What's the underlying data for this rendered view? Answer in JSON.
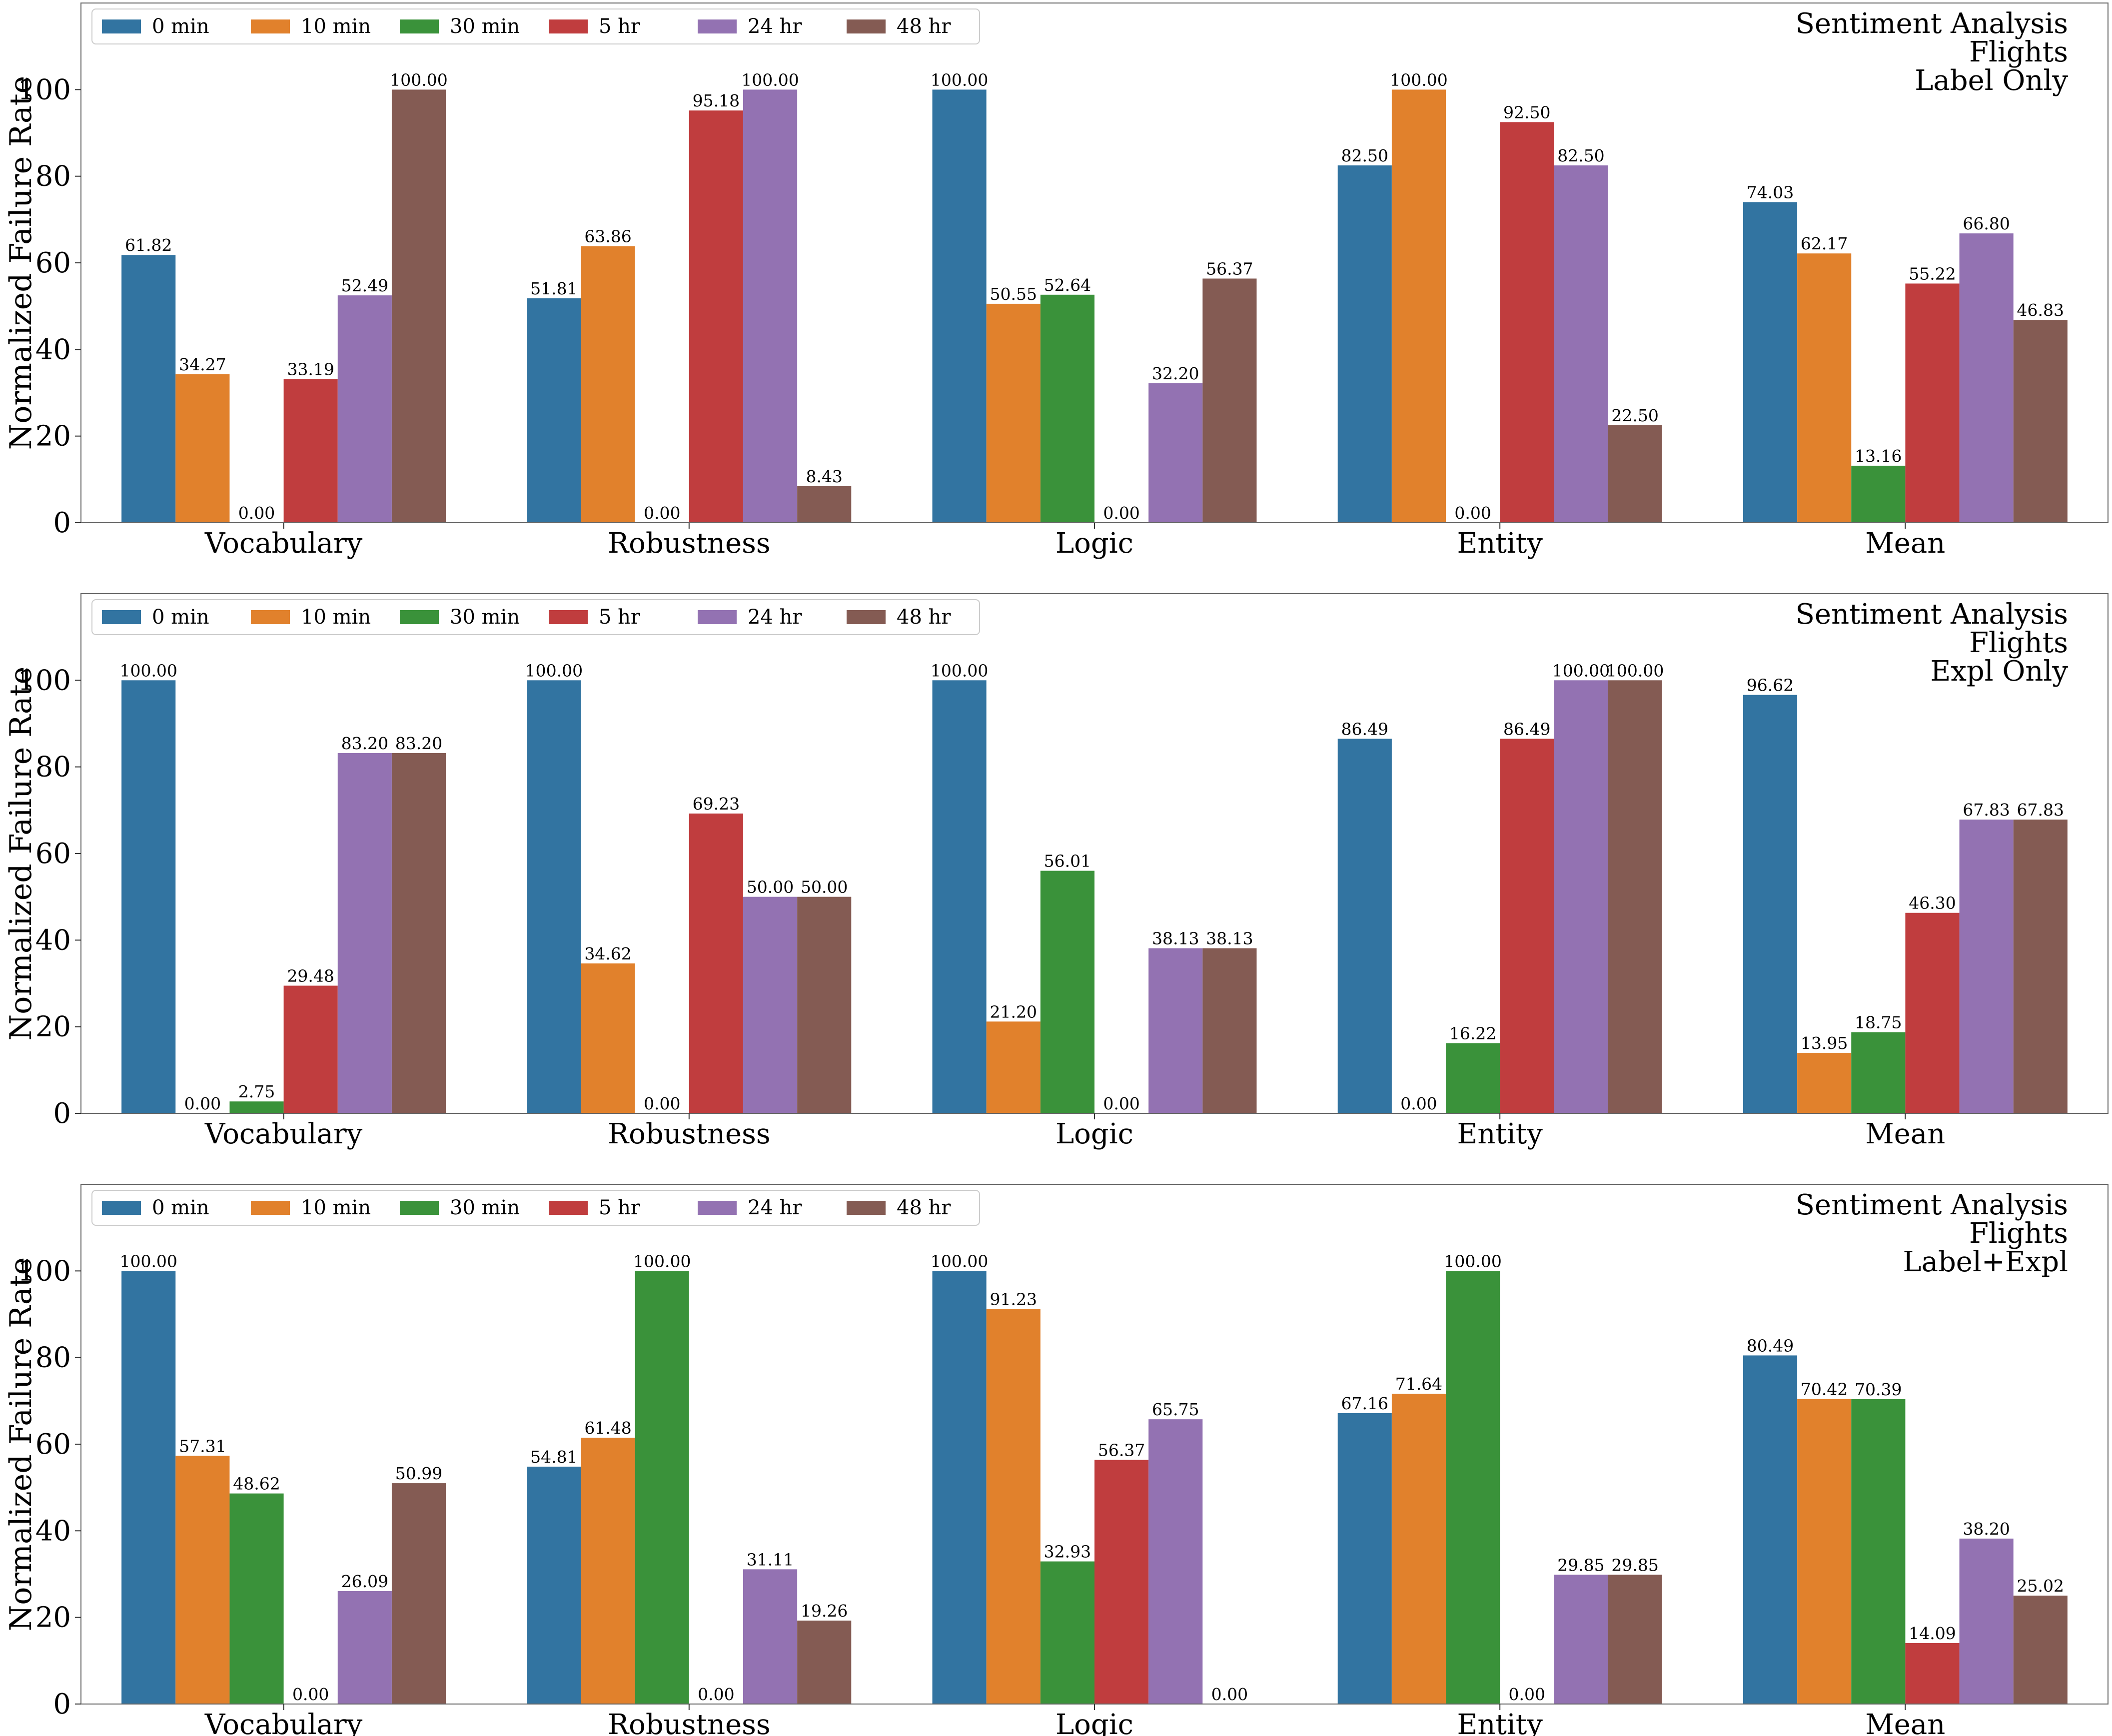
{
  "chart_data": [
    {
      "type": "bar",
      "annotation": [
        "Sentiment Analysis",
        "Flights",
        "Label Only"
      ],
      "ylabel": "Normalized Failure Rate",
      "ylim": [
        0,
        120
      ],
      "yticks": [
        "0",
        "20",
        "40",
        "60",
        "80",
        "100"
      ],
      "legend_position": "top-left",
      "categories": [
        "Vocabulary",
        "Robustness",
        "Logic",
        "Entity",
        "Mean"
      ],
      "series": [
        {
          "name": "0 min",
          "color": "#3274a1",
          "values": [
            61.82,
            51.81,
            100.0,
            82.5,
            74.03
          ],
          "labels": [
            "61.82",
            "51.81",
            "100.00",
            "82.50",
            "74.03"
          ]
        },
        {
          "name": "10 min",
          "color": "#e1812c",
          "values": [
            34.27,
            63.86,
            50.55,
            100.0,
            62.17
          ],
          "labels": [
            "34.27",
            "63.86",
            "50.55",
            "100.00",
            "62.17"
          ]
        },
        {
          "name": "30 min",
          "color": "#3a923a",
          "values": [
            0.0,
            0.0,
            52.64,
            0.0,
            13.16
          ],
          "labels": [
            "0.00",
            "0.00",
            "52.64",
            "0.00",
            "13.16"
          ]
        },
        {
          "name": "5 hr",
          "color": "#c03d3e",
          "values": [
            33.19,
            95.18,
            0.0,
            92.5,
            55.22
          ],
          "labels": [
            "33.19",
            "95.18",
            "0.00",
            "92.50",
            "55.22"
          ]
        },
        {
          "name": "24 hr",
          "color": "#9372b2",
          "values": [
            52.49,
            100.0,
            32.2,
            82.5,
            66.8
          ],
          "labels": [
            "52.49",
            "100.00",
            "32.20",
            "82.50",
            "66.80"
          ]
        },
        {
          "name": "48 hr",
          "color": "#845b53",
          "values": [
            100.0,
            8.43,
            56.37,
            22.5,
            46.83
          ],
          "labels": [
            "100.00",
            "8.43",
            "56.37",
            "22.50",
            "46.83"
          ]
        }
      ]
    },
    {
      "type": "bar",
      "annotation": [
        "Sentiment Analysis",
        "Flights",
        "Expl Only"
      ],
      "ylabel": "Normalized Failure Rate",
      "ylim": [
        0,
        120
      ],
      "yticks": [
        "0",
        "20",
        "40",
        "60",
        "80",
        "100"
      ],
      "legend_position": "top-left",
      "categories": [
        "Vocabulary",
        "Robustness",
        "Logic",
        "Entity",
        "Mean"
      ],
      "series": [
        {
          "name": "0 min",
          "color": "#3274a1",
          "values": [
            100.0,
            100.0,
            100.0,
            86.49,
            96.62
          ],
          "labels": [
            "100.00",
            "100.00",
            "100.00",
            "86.49",
            "96.62"
          ]
        },
        {
          "name": "10 min",
          "color": "#e1812c",
          "values": [
            0.0,
            34.62,
            21.2,
            0.0,
            13.95
          ],
          "labels": [
            "0.00",
            "34.62",
            "21.20",
            "0.00",
            "13.95"
          ]
        },
        {
          "name": "30 min",
          "color": "#3a923a",
          "values": [
            2.75,
            0.0,
            56.01,
            16.22,
            18.75
          ],
          "labels": [
            "2.75",
            "0.00",
            "56.01",
            "16.22",
            "18.75"
          ]
        },
        {
          "name": "5 hr",
          "color": "#c03d3e",
          "values": [
            29.48,
            69.23,
            0.0,
            86.49,
            46.3
          ],
          "labels": [
            "29.48",
            "69.23",
            "0.00",
            "86.49",
            "46.30"
          ]
        },
        {
          "name": "24 hr",
          "color": "#9372b2",
          "values": [
            83.2,
            50.0,
            38.13,
            100.0,
            67.83
          ],
          "labels": [
            "83.20",
            "50.00",
            "38.13",
            "100.00",
            "67.83"
          ]
        },
        {
          "name": "48 hr",
          "color": "#845b53",
          "values": [
            83.2,
            50.0,
            38.13,
            100.0,
            67.83
          ],
          "labels": [
            "83.20",
            "50.00",
            "38.13",
            "100.00",
            "67.83"
          ]
        }
      ]
    },
    {
      "type": "bar",
      "annotation": [
        "Sentiment Analysis",
        "Flights",
        "Label+Expl"
      ],
      "ylabel": "Normalized Failure Rate",
      "ylim": [
        0,
        120
      ],
      "yticks": [
        "0",
        "20",
        "40",
        "60",
        "80",
        "100"
      ],
      "legend_position": "top-left",
      "categories": [
        "Vocabulary",
        "Robustness",
        "Logic",
        "Entity",
        "Mean"
      ],
      "series": [
        {
          "name": "0 min",
          "color": "#3274a1",
          "values": [
            100.0,
            54.81,
            100.0,
            67.16,
            80.49
          ],
          "labels": [
            "100.00",
            "54.81",
            "100.00",
            "67.16",
            "80.49"
          ]
        },
        {
          "name": "10 min",
          "color": "#e1812c",
          "values": [
            57.31,
            61.48,
            91.23,
            71.64,
            70.42
          ],
          "labels": [
            "57.31",
            "61.48",
            "91.23",
            "71.64",
            "70.42"
          ]
        },
        {
          "name": "30 min",
          "color": "#3a923a",
          "values": [
            48.62,
            100.0,
            32.93,
            100.0,
            70.39
          ],
          "labels": [
            "48.62",
            "100.00",
            "32.93",
            "100.00",
            "70.39"
          ]
        },
        {
          "name": "5 hr",
          "color": "#c03d3e",
          "values": [
            0.0,
            0.0,
            56.37,
            0.0,
            14.09
          ],
          "labels": [
            "0.00",
            "0.00",
            "56.37",
            "0.00",
            "14.09"
          ]
        },
        {
          "name": "24 hr",
          "color": "#9372b2",
          "values": [
            26.09,
            31.11,
            65.75,
            29.85,
            38.2
          ],
          "labels": [
            "26.09",
            "31.11",
            "65.75",
            "29.85",
            "38.20"
          ]
        },
        {
          "name": "48 hr",
          "color": "#845b53",
          "values": [
            50.99,
            19.26,
            0.0,
            29.85,
            25.02
          ],
          "labels": [
            "50.99",
            "19.26",
            "0.00",
            "29.85",
            "25.02"
          ]
        }
      ]
    }
  ]
}
